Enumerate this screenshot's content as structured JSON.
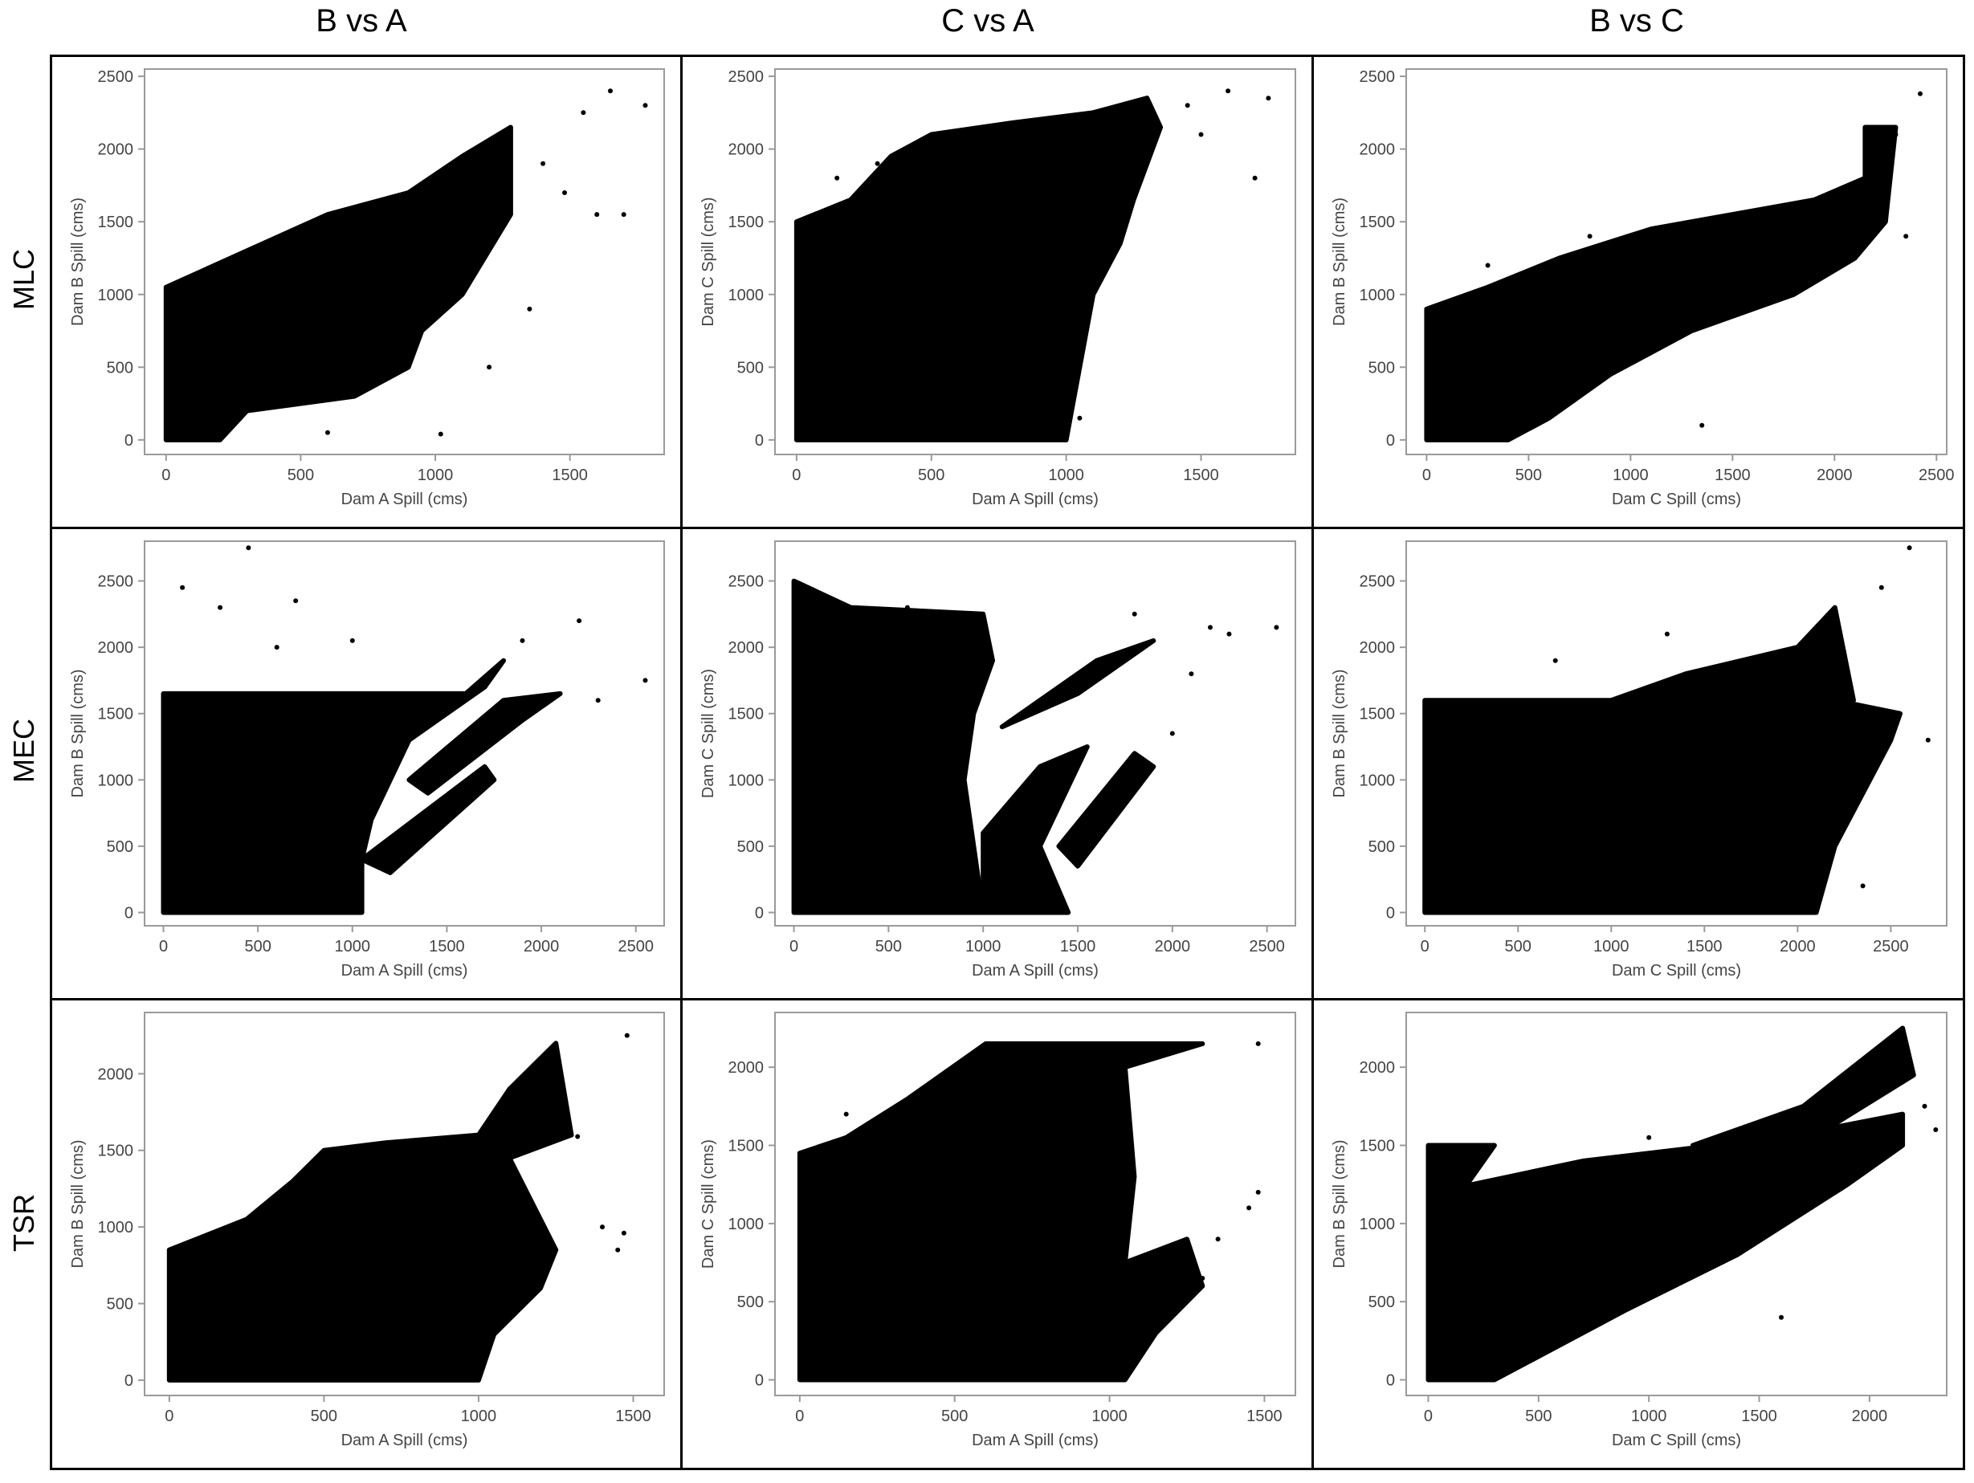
{
  "columns": [
    "B vs A",
    "C vs A",
    "B vs C"
  ],
  "rows": [
    "MLC",
    "MEC",
    "TSR"
  ],
  "colors": {
    "points": "#000000",
    "axis": "#9a9a9a",
    "frame": "#000000",
    "text": "#444444"
  },
  "chart_data": [
    {
      "type": "scatter",
      "row": "MLC",
      "column": "B vs A",
      "xlabel": "Dam A Spill (cms)",
      "ylabel": "Dam B Spill (cms)",
      "xlim": [
        -80,
        1850
      ],
      "ylim": [
        -100,
        2550
      ],
      "xticks": [
        0,
        500,
        1000,
        1500
      ],
      "yticks": [
        0,
        500,
        1000,
        1500,
        2000,
        2500
      ],
      "grid": false,
      "regions": [
        [
          [
            0,
            0
          ],
          [
            0,
            1050
          ],
          [
            300,
            1300
          ],
          [
            600,
            1550
          ],
          [
            900,
            1700
          ],
          [
            1100,
            1950
          ],
          [
            1280,
            2150
          ],
          [
            1280,
            1550
          ],
          [
            1100,
            1000
          ],
          [
            950,
            750
          ],
          [
            900,
            500
          ],
          [
            700,
            300
          ],
          [
            300,
            200
          ],
          [
            200,
            0
          ]
        ]
      ],
      "points": [
        [
          1650,
          2400
        ],
        [
          1780,
          2300
        ],
        [
          1480,
          1700
        ],
        [
          1600,
          1550
        ],
        [
          1400,
          1900
        ],
        [
          1020,
          40
        ],
        [
          600,
          50
        ],
        [
          1200,
          500
        ],
        [
          1350,
          900
        ],
        [
          1050,
          1100
        ],
        [
          1700,
          1550
        ],
        [
          1550,
          2250
        ]
      ]
    },
    {
      "type": "scatter",
      "row": "MLC",
      "column": "C vs A",
      "xlabel": "Dam A Spill (cms)",
      "ylabel": "Dam C Spill (cms)",
      "xlim": [
        -80,
        1850
      ],
      "ylim": [
        -100,
        2550
      ],
      "xticks": [
        0,
        500,
        1000,
        1500
      ],
      "yticks": [
        0,
        500,
        1000,
        1500,
        2000,
        2500
      ],
      "grid": false,
      "regions": [
        [
          [
            0,
            0
          ],
          [
            0,
            1500
          ],
          [
            200,
            1650
          ],
          [
            350,
            1950
          ],
          [
            500,
            2100
          ],
          [
            800,
            2180
          ],
          [
            1100,
            2250
          ],
          [
            1300,
            2350
          ],
          [
            1350,
            2150
          ],
          [
            1250,
            1650
          ],
          [
            1200,
            1350
          ],
          [
            1100,
            1000
          ],
          [
            1050,
            500
          ],
          [
            1000,
            0
          ]
        ]
      ],
      "points": [
        [
          1600,
          2400
        ],
        [
          1750,
          2350
        ],
        [
          1700,
          1800
        ],
        [
          1500,
          2100
        ],
        [
          1250,
          2150
        ],
        [
          900,
          700
        ],
        [
          1050,
          150
        ],
        [
          150,
          1800
        ],
        [
          300,
          1900
        ],
        [
          1450,
          2300
        ]
      ]
    },
    {
      "type": "scatter",
      "row": "MLC",
      "column": "B vs C",
      "xlabel": "Dam C Spill (cms)",
      "ylabel": "Dam B Spill (cms)",
      "xlim": [
        -100,
        2550
      ],
      "ylim": [
        -100,
        2550
      ],
      "xticks": [
        0,
        500,
        1000,
        1500,
        2000,
        2500
      ],
      "yticks": [
        0,
        500,
        1000,
        1500,
        2000,
        2500
      ],
      "grid": false,
      "regions": [
        [
          [
            0,
            0
          ],
          [
            0,
            900
          ],
          [
            300,
            1050
          ],
          [
            650,
            1250
          ],
          [
            1100,
            1450
          ],
          [
            1500,
            1550
          ],
          [
            1900,
            1650
          ],
          [
            2150,
            1800
          ],
          [
            2150,
            2150
          ],
          [
            2300,
            2150
          ],
          [
            2250,
            1500
          ],
          [
            2100,
            1250
          ],
          [
            1800,
            1000
          ],
          [
            1300,
            750
          ],
          [
            900,
            450
          ],
          [
            600,
            150
          ],
          [
            400,
            0
          ]
        ]
      ],
      "points": [
        [
          2420,
          2380
        ],
        [
          2300,
          2100
        ],
        [
          2200,
          1900
        ],
        [
          1350,
          100
        ],
        [
          800,
          1400
        ],
        [
          2350,
          1400
        ],
        [
          300,
          1200
        ]
      ]
    },
    {
      "type": "scatter",
      "row": "MEC",
      "column": "B vs A",
      "xlabel": "Dam A Spill (cms)",
      "ylabel": "Dam B Spill (cms)",
      "xlim": [
        -100,
        2650
      ],
      "ylim": [
        -100,
        2800
      ],
      "xticks": [
        0,
        500,
        1000,
        1500,
        2000,
        2500
      ],
      "yticks": [
        0,
        500,
        1000,
        1500,
        2000,
        2500
      ],
      "grid": false,
      "regions": [
        [
          [
            0,
            0
          ],
          [
            0,
            1650
          ],
          [
            1600,
            1650
          ],
          [
            1800,
            1900
          ],
          [
            1700,
            1700
          ],
          [
            1500,
            1500
          ],
          [
            1300,
            1300
          ],
          [
            1200,
            1000
          ],
          [
            1100,
            700
          ],
          [
            1050,
            400
          ],
          [
            1050,
            0
          ]
        ],
        [
          [
            1050,
            400
          ],
          [
            1700,
            1100
          ],
          [
            1750,
            1000
          ],
          [
            1200,
            300
          ]
        ],
        [
          [
            1300,
            1000
          ],
          [
            1800,
            1600
          ],
          [
            2100,
            1650
          ],
          [
            1900,
            1450
          ],
          [
            1400,
            900
          ]
        ]
      ],
      "points": [
        [
          450,
          2750
        ],
        [
          2550,
          1750
        ],
        [
          2300,
          1600
        ],
        [
          2200,
          2200
        ],
        [
          1900,
          2050
        ],
        [
          700,
          2350
        ],
        [
          300,
          2300
        ],
        [
          1000,
          2050
        ],
        [
          100,
          2450
        ],
        [
          600,
          2000
        ]
      ]
    },
    {
      "type": "scatter",
      "row": "MEC",
      "column": "C vs A",
      "xlabel": "Dam A Spill (cms)",
      "ylabel": "Dam C Spill (cms)",
      "xlim": [
        -100,
        2650
      ],
      "ylim": [
        -100,
        2800
      ],
      "xticks": [
        0,
        500,
        1000,
        1500,
        2000,
        2500
      ],
      "yticks": [
        0,
        500,
        1000,
        1500,
        2000,
        2500
      ],
      "grid": false,
      "regions": [
        [
          [
            0,
            0
          ],
          [
            0,
            2500
          ],
          [
            300,
            2300
          ],
          [
            1000,
            2250
          ],
          [
            1050,
            1900
          ],
          [
            950,
            1500
          ],
          [
            900,
            1000
          ],
          [
            950,
            500
          ],
          [
            1000,
            0
          ]
        ],
        [
          [
            1000,
            0
          ],
          [
            1000,
            600
          ],
          [
            1300,
            1100
          ],
          [
            1550,
            1250
          ],
          [
            1300,
            500
          ],
          [
            1450,
            0
          ]
        ],
        [
          [
            1400,
            500
          ],
          [
            1800,
            1200
          ],
          [
            1900,
            1100
          ],
          [
            1500,
            350
          ]
        ],
        [
          [
            1100,
            1400
          ],
          [
            1600,
            1900
          ],
          [
            1900,
            2050
          ],
          [
            1500,
            1650
          ]
        ]
      ],
      "points": [
        [
          2550,
          2150
        ],
        [
          2300,
          2100
        ],
        [
          2200,
          2150
        ],
        [
          1800,
          2250
        ],
        [
          600,
          2300
        ],
        [
          2100,
          1800
        ],
        [
          2000,
          1350
        ]
      ]
    },
    {
      "type": "scatter",
      "row": "MEC",
      "column": "B vs C",
      "xlabel": "Dam C Spill (cms)",
      "ylabel": "Dam B Spill (cms)",
      "xlim": [
        -100,
        2800
      ],
      "ylim": [
        -100,
        2800
      ],
      "xticks": [
        0,
        500,
        1000,
        1500,
        2000,
        2500
      ],
      "yticks": [
        0,
        500,
        1000,
        1500,
        2000,
        2500
      ],
      "grid": false,
      "regions": [
        [
          [
            0,
            0
          ],
          [
            0,
            1600
          ],
          [
            2200,
            1600
          ],
          [
            2550,
            1500
          ],
          [
            2500,
            1300
          ],
          [
            2350,
            900
          ],
          [
            2200,
            500
          ],
          [
            2100,
            0
          ]
        ],
        [
          [
            1000,
            1600
          ],
          [
            1400,
            1800
          ],
          [
            2000,
            2000
          ],
          [
            2200,
            2300
          ],
          [
            2300,
            1600
          ]
        ]
      ],
      "points": [
        [
          2600,
          2750
        ],
        [
          2450,
          2450
        ],
        [
          2700,
          1300
        ],
        [
          2350,
          200
        ],
        [
          700,
          1900
        ],
        [
          1300,
          2100
        ]
      ]
    },
    {
      "type": "scatter",
      "row": "TSR",
      "column": "B vs A",
      "xlabel": "Dam A Spill (cms)",
      "ylabel": "Dam B Spill (cms)",
      "xlim": [
        -80,
        1600
      ],
      "ylim": [
        -100,
        2400
      ],
      "xticks": [
        0,
        500,
        1000,
        1500
      ],
      "yticks": [
        0,
        500,
        1000,
        1500,
        2000
      ],
      "grid": false,
      "regions": [
        [
          [
            0,
            0
          ],
          [
            0,
            850
          ],
          [
            250,
            1050
          ],
          [
            400,
            1300
          ],
          [
            500,
            1500
          ],
          [
            700,
            1550
          ],
          [
            1000,
            1600
          ],
          [
            1100,
            1900
          ],
          [
            1250,
            2200
          ],
          [
            1300,
            1600
          ],
          [
            1100,
            1450
          ],
          [
            1250,
            850
          ],
          [
            1200,
            600
          ],
          [
            1050,
            300
          ],
          [
            1000,
            0
          ]
        ]
      ],
      "points": [
        [
          1480,
          2250
        ],
        [
          1400,
          1000
        ],
        [
          1470,
          960
        ],
        [
          1450,
          850
        ],
        [
          1320,
          1590
        ],
        [
          700,
          1500
        ]
      ]
    },
    {
      "type": "scatter",
      "row": "TSR",
      "column": "C vs A",
      "xlabel": "Dam A Spill (cms)",
      "ylabel": "Dam C Spill (cms)",
      "xlim": [
        -80,
        1600
      ],
      "ylim": [
        -100,
        2350
      ],
      "xticks": [
        0,
        500,
        1000,
        1500
      ],
      "yticks": [
        0,
        500,
        1000,
        1500,
        2000
      ],
      "grid": false,
      "regions": [
        [
          [
            0,
            0
          ],
          [
            0,
            1450
          ],
          [
            150,
            1550
          ],
          [
            350,
            1800
          ],
          [
            600,
            2150
          ],
          [
            1300,
            2150
          ],
          [
            1050,
            2000
          ],
          [
            1080,
            1300
          ],
          [
            1050,
            750
          ],
          [
            1250,
            900
          ],
          [
            1300,
            600
          ],
          [
            1150,
            300
          ],
          [
            1050,
            0
          ]
        ]
      ],
      "points": [
        [
          1480,
          2150
        ],
        [
          1480,
          1200
        ],
        [
          1450,
          1100
        ],
        [
          1300,
          650
        ],
        [
          1350,
          900
        ],
        [
          150,
          1700
        ]
      ]
    },
    {
      "type": "scatter",
      "row": "TSR",
      "column": "B vs C",
      "xlabel": "Dam C Spill (cms)",
      "ylabel": "Dam B Spill (cms)",
      "xlim": [
        -100,
        2350
      ],
      "ylim": [
        -100,
        2350
      ],
      "xticks": [
        0,
        500,
        1000,
        1500,
        2000
      ],
      "yticks": [
        0,
        500,
        1000,
        1500,
        2000
      ],
      "grid": false,
      "regions": [
        [
          [
            0,
            0
          ],
          [
            0,
            1100
          ],
          [
            200,
            1250
          ],
          [
            700,
            1400
          ],
          [
            1300,
            1500
          ],
          [
            1600,
            1550
          ],
          [
            2150,
            1700
          ],
          [
            2150,
            1500
          ],
          [
            1900,
            1250
          ],
          [
            1400,
            800
          ],
          [
            900,
            450
          ],
          [
            500,
            150
          ],
          [
            300,
            0
          ]
        ],
        [
          [
            1200,
            1500
          ],
          [
            1700,
            1750
          ],
          [
            2150,
            2250
          ],
          [
            2200,
            1950
          ],
          [
            1800,
            1600
          ]
        ],
        [
          [
            0,
            1100
          ],
          [
            0,
            1500
          ],
          [
            300,
            1500
          ],
          [
            150,
            1200
          ]
        ]
      ],
      "points": [
        [
          2300,
          1600
        ],
        [
          2250,
          1750
        ],
        [
          1000,
          1550
        ],
        [
          700,
          1200
        ],
        [
          1600,
          400
        ]
      ]
    }
  ]
}
